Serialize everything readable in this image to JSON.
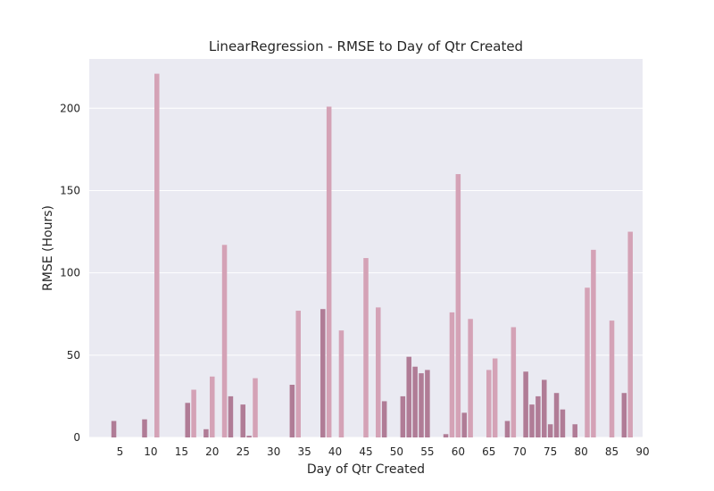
{
  "chart_data": {
    "type": "bar",
    "title": "LinearRegression - RMSE to Day of Qtr Created",
    "xlabel": "Day of Qtr Created",
    "ylabel": "RMSE (Hours)",
    "xlim": [
      0,
      90
    ],
    "ylim": [
      0,
      230
    ],
    "x_ticks": [
      5,
      10,
      15,
      20,
      25,
      30,
      35,
      40,
      45,
      50,
      55,
      60,
      65,
      70,
      75,
      80,
      85,
      90
    ],
    "y_ticks": [
      0,
      50,
      100,
      150,
      200
    ],
    "grid": true,
    "legend": "none",
    "colors": {
      "plot_background": "#eaeaf2",
      "grid": "#ffffff",
      "bar_light": "#d4a2b6",
      "bar_dark": "#b07c96",
      "text": "#262626"
    },
    "bars": [
      {
        "x": 4,
        "value": 10,
        "shade": "dark"
      },
      {
        "x": 9,
        "value": 11,
        "shade": "dark"
      },
      {
        "x": 11,
        "value": 221,
        "shade": "light"
      },
      {
        "x": 16,
        "value": 21,
        "shade": "dark"
      },
      {
        "x": 17,
        "value": 29,
        "shade": "light"
      },
      {
        "x": 19,
        "value": 5,
        "shade": "dark"
      },
      {
        "x": 20,
        "value": 37,
        "shade": "light"
      },
      {
        "x": 22,
        "value": 117,
        "shade": "light"
      },
      {
        "x": 23,
        "value": 25,
        "shade": "dark"
      },
      {
        "x": 25,
        "value": 20,
        "shade": "dark"
      },
      {
        "x": 26,
        "value": 1,
        "shade": "dark"
      },
      {
        "x": 27,
        "value": 36,
        "shade": "light"
      },
      {
        "x": 33,
        "value": 32,
        "shade": "dark"
      },
      {
        "x": 34,
        "value": 77,
        "shade": "light"
      },
      {
        "x": 38,
        "value": 78,
        "shade": "dark"
      },
      {
        "x": 39,
        "value": 201,
        "shade": "light"
      },
      {
        "x": 41,
        "value": 65,
        "shade": "light"
      },
      {
        "x": 45,
        "value": 109,
        "shade": "light"
      },
      {
        "x": 47,
        "value": 79,
        "shade": "light"
      },
      {
        "x": 48,
        "value": 22,
        "shade": "dark"
      },
      {
        "x": 51,
        "value": 25,
        "shade": "dark"
      },
      {
        "x": 52,
        "value": 49,
        "shade": "dark"
      },
      {
        "x": 53,
        "value": 43,
        "shade": "dark"
      },
      {
        "x": 54,
        "value": 39,
        "shade": "dark"
      },
      {
        "x": 55,
        "value": 41,
        "shade": "dark"
      },
      {
        "x": 58,
        "value": 2,
        "shade": "dark"
      },
      {
        "x": 59,
        "value": 76,
        "shade": "light"
      },
      {
        "x": 60,
        "value": 160,
        "shade": "light"
      },
      {
        "x": 61,
        "value": 15,
        "shade": "dark"
      },
      {
        "x": 62,
        "value": 72,
        "shade": "light"
      },
      {
        "x": 65,
        "value": 41,
        "shade": "light"
      },
      {
        "x": 66,
        "value": 48,
        "shade": "light"
      },
      {
        "x": 68,
        "value": 10,
        "shade": "dark"
      },
      {
        "x": 69,
        "value": 67,
        "shade": "light"
      },
      {
        "x": 71,
        "value": 40,
        "shade": "dark"
      },
      {
        "x": 72,
        "value": 20,
        "shade": "dark"
      },
      {
        "x": 73,
        "value": 25,
        "shade": "dark"
      },
      {
        "x": 74,
        "value": 35,
        "shade": "dark"
      },
      {
        "x": 75,
        "value": 8,
        "shade": "dark"
      },
      {
        "x": 76,
        "value": 27,
        "shade": "dark"
      },
      {
        "x": 77,
        "value": 17,
        "shade": "dark"
      },
      {
        "x": 79,
        "value": 8,
        "shade": "dark"
      },
      {
        "x": 81,
        "value": 91,
        "shade": "light"
      },
      {
        "x": 82,
        "value": 114,
        "shade": "light"
      },
      {
        "x": 85,
        "value": 71,
        "shade": "light"
      },
      {
        "x": 87,
        "value": 27,
        "shade": "dark"
      },
      {
        "x": 88,
        "value": 125,
        "shade": "light"
      }
    ]
  }
}
